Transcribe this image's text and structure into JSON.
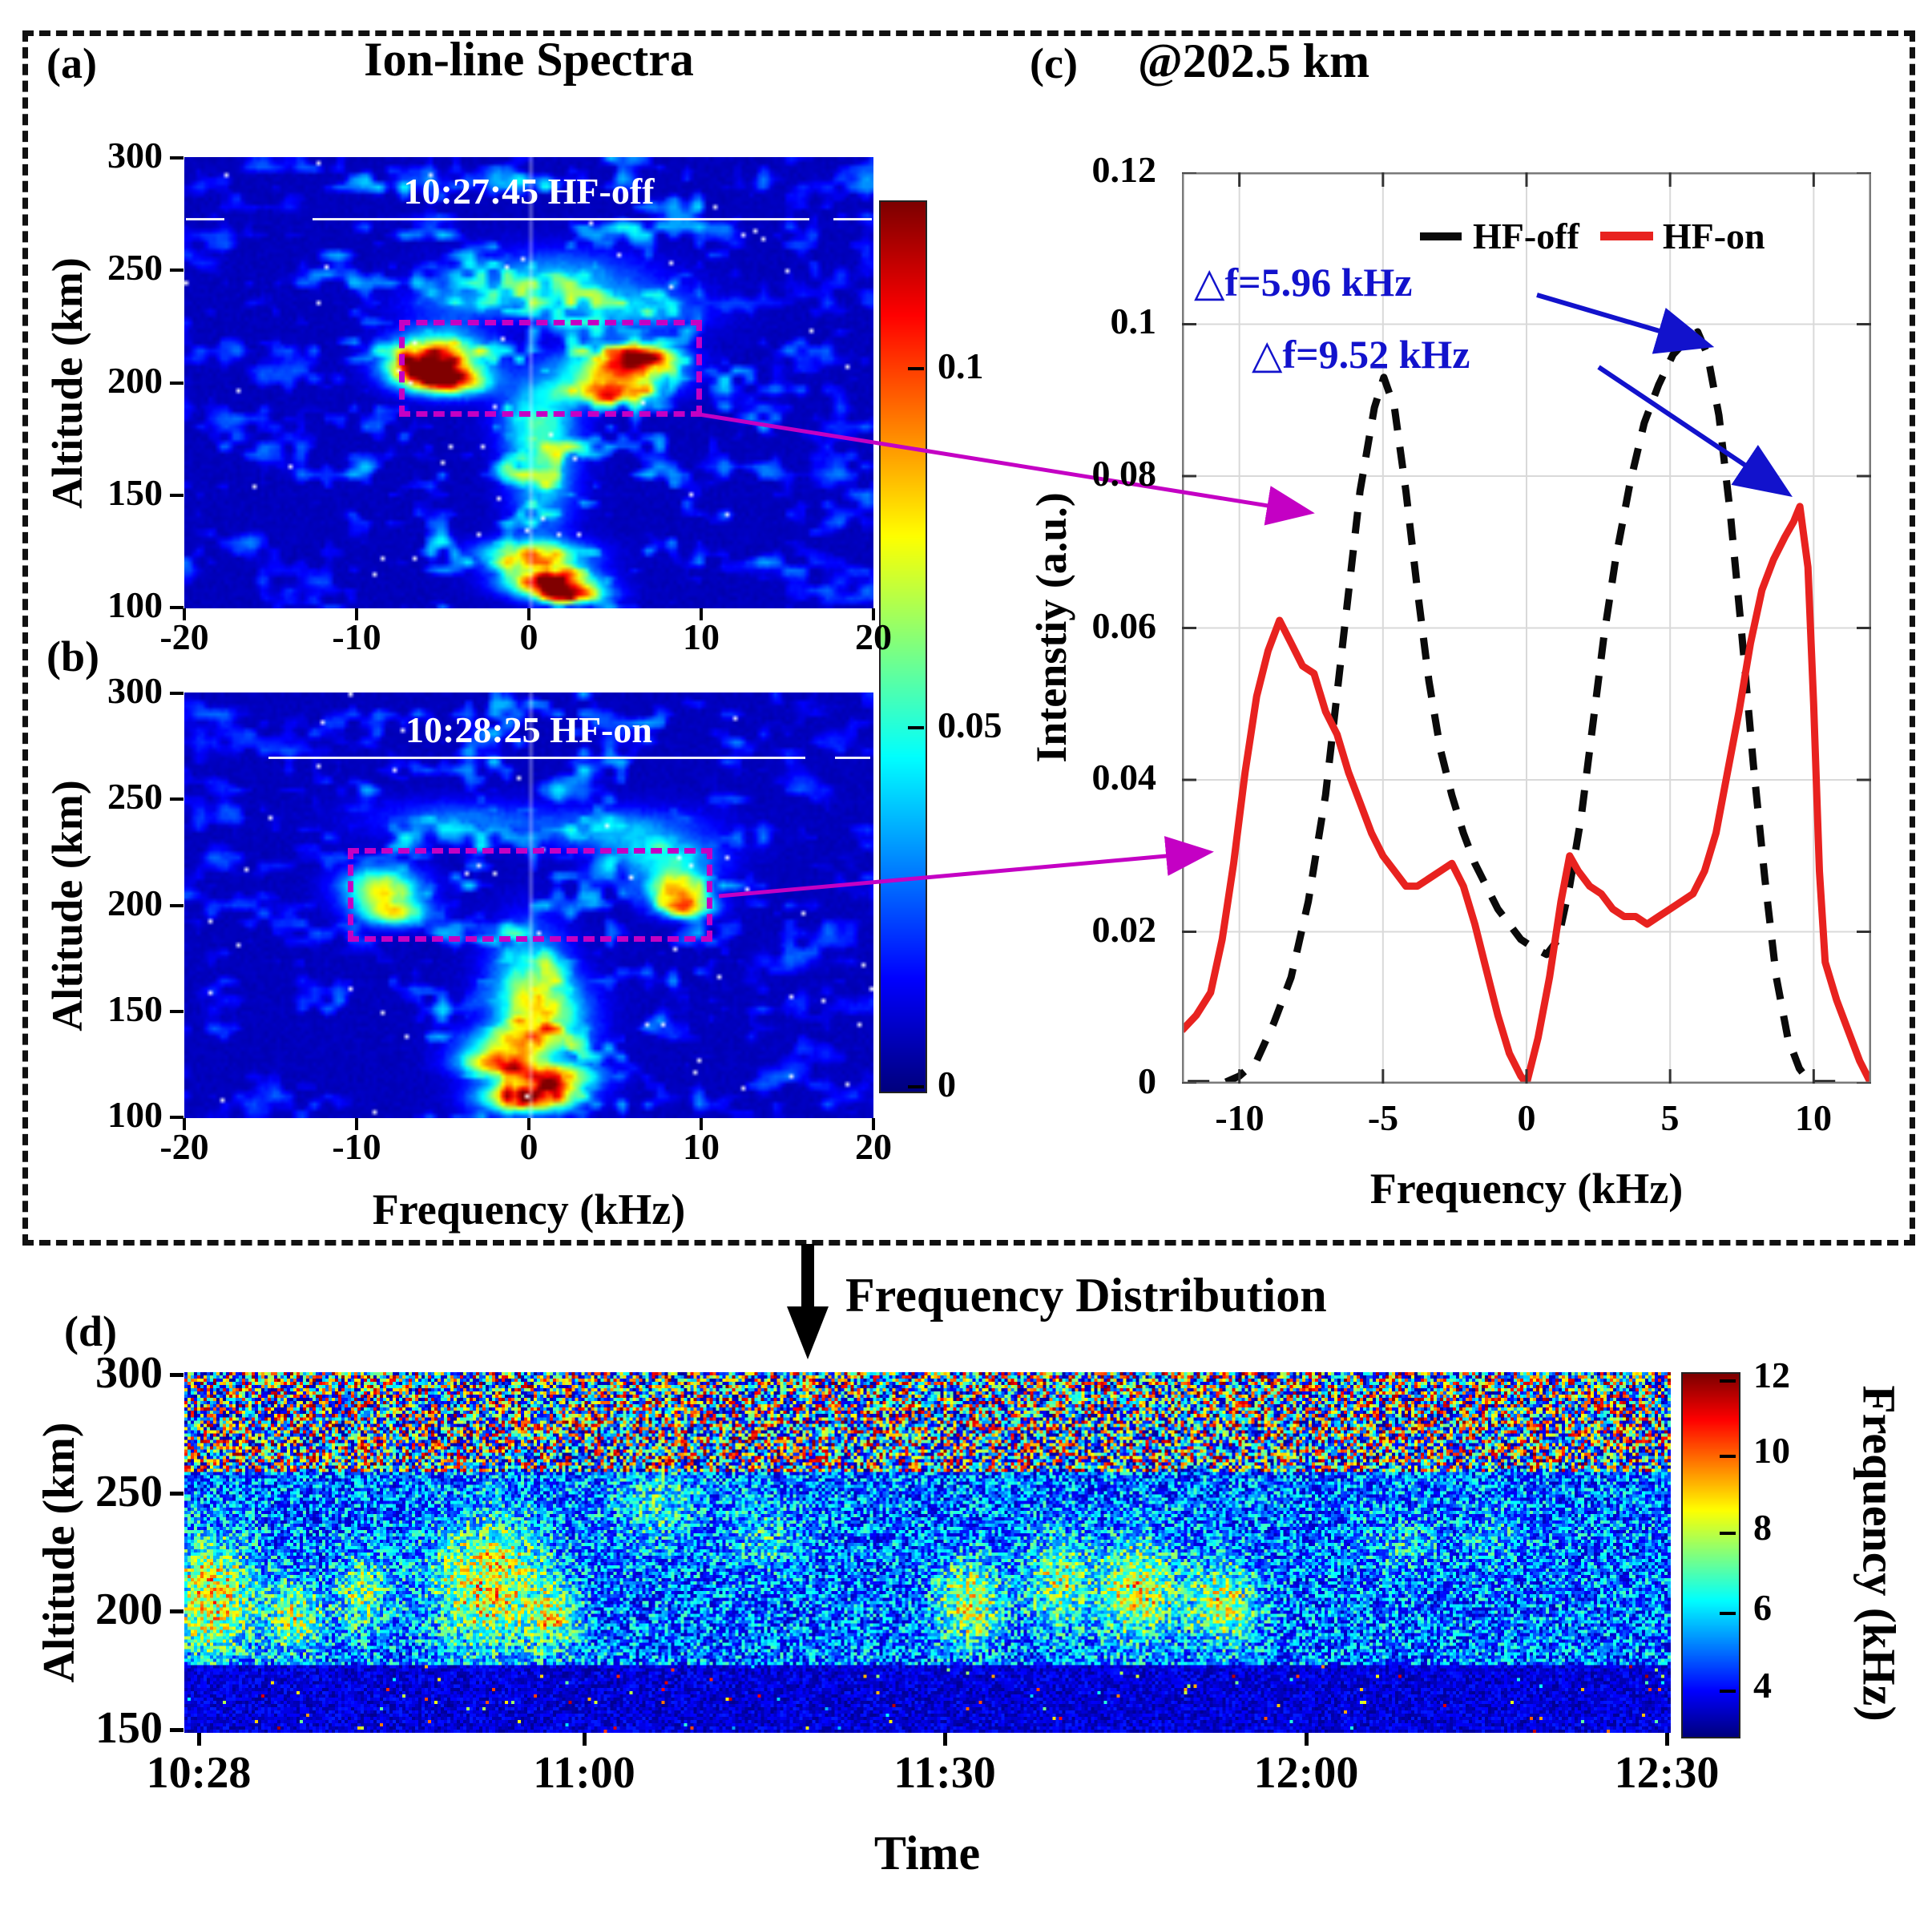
{
  "figure": {
    "panel_a": {
      "label": "(a)",
      "title": "Ion-line Spectra",
      "annotation": "10:27:45 HF-off",
      "ylabel": "Altitude (km)",
      "yticks": [
        "300",
        "250",
        "200",
        "150",
        "100"
      ],
      "xticks": [
        "-20",
        "-10",
        "0",
        "10",
        "20"
      ]
    },
    "panel_b": {
      "label": "(b)",
      "annotation": "10:28:25 HF-on",
      "ylabel": "Altitude (km)",
      "xlabel": "Frequency (kHz)",
      "yticks": [
        "300",
        "250",
        "200",
        "150",
        "100"
      ],
      "xticks": [
        "-20",
        "-10",
        "0",
        "10",
        "20"
      ]
    },
    "colorbar_ab": {
      "ticks": [
        "0.1",
        "0.05",
        "0"
      ]
    },
    "panel_c": {
      "label": "(c)",
      "title": "@202.5 km",
      "ylabel": "Intenstiy (a.u.)",
      "xlabel": "Frequency (kHz)",
      "yticks": [
        "0.12",
        "0.1",
        "0.08",
        "0.06",
        "0.04",
        "0.02",
        "0"
      ],
      "xticks": [
        "-10",
        "-5",
        "0",
        "5",
        "10"
      ],
      "legend": [
        {
          "label": "HF-off",
          "color": "#0a0a0a",
          "style": "dashed"
        },
        {
          "label": "HF-on",
          "color": "#e8221f",
          "style": "solid"
        }
      ],
      "annotations": [
        {
          "text": "△f=5.96 kHz"
        },
        {
          "text": "△f=9.52 kHz"
        }
      ]
    },
    "panel_d": {
      "label": "(d)",
      "title": "Frequency Distribution",
      "ylabel": "Altitude (km)",
      "xlabel": "Time",
      "yticks": [
        "300",
        "250",
        "200",
        "150"
      ],
      "xticks": [
        "10:28",
        "11:00",
        "11:30",
        "12:00",
        "12:30"
      ],
      "colorbar": {
        "ticks": [
          "12",
          "10",
          "8",
          "6",
          "4"
        ],
        "label": "Frequency (kHz)"
      }
    },
    "colors": {
      "highlight_magenta": "#c400c4",
      "annotation_blue": "#1212cc",
      "hf_on_red": "#e8221f",
      "hf_off_black": "#0a0a0a"
    }
  },
  "chart_data": [
    {
      "id": "panel_a",
      "type": "heatmap",
      "title": "Ion-line Spectra",
      "in_plot_label": "10:27:45 HF-off",
      "ylabel": "Altitude (km)",
      "xlim_kHz": [
        -20,
        20
      ],
      "ylim_km": [
        100,
        300
      ],
      "x_ticks": [
        -20,
        -10,
        0,
        10,
        20
      ],
      "y_ticks": [
        300,
        250,
        200,
        150,
        100
      ],
      "colormap": "jet",
      "color_range": [
        0,
        0.124
      ],
      "colorbar_ticks": [
        0.1,
        0.05,
        0
      ],
      "highlight_box": {
        "f_kHz": [
          -7.5,
          9.4
        ],
        "alt_km": [
          190,
          228
        ]
      },
      "noise_seed": 7,
      "features": [
        {
          "f": -5.2,
          "alt": 212,
          "sf": 2.6,
          "sa": 11,
          "amp": 0.7
        },
        {
          "f": -4.8,
          "alt": 201,
          "sf": 2.2,
          "sa": 6,
          "amp": 0.85
        },
        {
          "f": -6.5,
          "alt": 207,
          "sf": 1.8,
          "sa": 7,
          "amp": 0.6
        },
        {
          "f": 5.3,
          "alt": 206,
          "sf": 3.0,
          "sa": 9,
          "amp": 0.78
        },
        {
          "f": 6.8,
          "alt": 212,
          "sf": 1.8,
          "sa": 5,
          "amp": 0.7
        },
        {
          "f": 4.5,
          "alt": 196,
          "sf": 2.5,
          "sa": 5,
          "amp": 0.6
        },
        {
          "f": 1.2,
          "alt": 112,
          "sf": 2.4,
          "sa": 6,
          "amp": 1.0
        },
        {
          "f": 0.2,
          "alt": 124,
          "sf": 3.0,
          "sa": 6,
          "amp": 0.62
        },
        {
          "f": 2.5,
          "alt": 106,
          "sf": 2.0,
          "sa": 4,
          "amp": 0.7
        },
        {
          "f": 0.8,
          "alt": 160,
          "sf": 1.8,
          "sa": 28,
          "amp": 0.32
        },
        {
          "f": 0.5,
          "alt": 185,
          "sf": 2.2,
          "sa": 18,
          "amp": 0.28
        },
        {
          "f": 1.5,
          "alt": 247,
          "sf": 5.0,
          "sa": 12,
          "amp": 0.26
        },
        {
          "f": 6.0,
          "alt": 232,
          "sf": 4.0,
          "sa": 10,
          "amp": 0.28
        },
        {
          "f": -3.0,
          "alt": 236,
          "sf": 4.0,
          "sa": 8,
          "amp": 0.2
        }
      ]
    },
    {
      "id": "panel_b",
      "type": "heatmap",
      "in_plot_label": "10:28:25 HF-on",
      "ylabel": "Altitude (km)",
      "xlabel": "Frequency (kHz)",
      "xlim_kHz": [
        -20,
        20
      ],
      "ylim_km": [
        100,
        300
      ],
      "x_ticks": [
        -20,
        -10,
        0,
        10,
        20
      ],
      "y_ticks": [
        300,
        250,
        200,
        150,
        100
      ],
      "colormap": "jet",
      "color_range": [
        0,
        0.124
      ],
      "colorbar_ticks": [
        0.1,
        0.05,
        0
      ],
      "highlight_box": {
        "f_kHz": [
          -10.5,
          10
        ],
        "alt_km": [
          188,
          227
        ]
      },
      "noise_seed": 13,
      "features": [
        {
          "f": -8.6,
          "alt": 208,
          "sf": 2.2,
          "sa": 10,
          "amp": 0.6
        },
        {
          "f": -7.8,
          "alt": 196,
          "sf": 2.0,
          "sa": 6,
          "amp": 0.5
        },
        {
          "f": 8.6,
          "alt": 208,
          "sf": 1.8,
          "sa": 8,
          "amp": 0.72
        },
        {
          "f": 9.2,
          "alt": 199,
          "sf": 1.5,
          "sa": 5,
          "amp": 0.6
        },
        {
          "f": 0.0,
          "alt": 110,
          "sf": 2.6,
          "sa": 7,
          "amp": 1.0
        },
        {
          "f": -1.8,
          "alt": 126,
          "sf": 2.2,
          "sa": 6,
          "amp": 0.75
        },
        {
          "f": 1.5,
          "alt": 120,
          "sf": 2.5,
          "sa": 6,
          "amp": 0.68
        },
        {
          "f": -0.5,
          "alt": 136,
          "sf": 3.0,
          "sa": 7,
          "amp": 0.5
        },
        {
          "f": 0.0,
          "alt": 165,
          "sf": 2.2,
          "sa": 25,
          "amp": 0.38
        },
        {
          "f": 1.0,
          "alt": 150,
          "sf": 2.5,
          "sa": 15,
          "amp": 0.42
        },
        {
          "f": 5.5,
          "alt": 235,
          "sf": 4.5,
          "sa": 10,
          "amp": 0.26
        },
        {
          "f": -4.0,
          "alt": 240,
          "sf": 5.0,
          "sa": 9,
          "amp": 0.2
        },
        {
          "f": 8.0,
          "alt": 222,
          "sf": 3.0,
          "sa": 8,
          "amp": 0.32
        }
      ]
    },
    {
      "id": "panel_c",
      "type": "line",
      "title": "@202.5 km",
      "xlabel": "Frequency (kHz)",
      "ylabel": "Intenstiy (a.u.)",
      "xlim": [
        -12,
        12
      ],
      "ylim": [
        0,
        0.12
      ],
      "x_ticks": [
        -10,
        -5,
        0,
        5,
        10
      ],
      "y_ticks": [
        0.12,
        0.1,
        0.08,
        0.06,
        0.04,
        0.02,
        0
      ],
      "grid": true,
      "legend_position": "top-right",
      "annotations": [
        {
          "text": "△f=5.96 kHz",
          "series": "HF-off",
          "peak_f_kHz": 5.96,
          "peak_intensity": 0.099
        },
        {
          "text": "△f=9.52 kHz",
          "series": "HF-on",
          "peak_f_kHz": 9.52,
          "peak_intensity": 0.076
        }
      ],
      "series": [
        {
          "name": "HF-off",
          "color": "#0a0a0a",
          "style": "dashed",
          "points": [
            [
              -11.8,
              0
            ],
            [
              -10.6,
              0
            ],
            [
              -10,
              0.001
            ],
            [
              -9.4,
              0.003
            ],
            [
              -8.8,
              0.008
            ],
            [
              -8.2,
              0.014
            ],
            [
              -7.6,
              0.024
            ],
            [
              -7,
              0.038
            ],
            [
              -6.4,
              0.058
            ],
            [
              -5.8,
              0.078
            ],
            [
              -5.3,
              0.089
            ],
            [
              -4.97,
              0.093
            ],
            [
              -4.6,
              0.089
            ],
            [
              -4.2,
              0.078
            ],
            [
              -3.8,
              0.065
            ],
            [
              -3.4,
              0.053
            ],
            [
              -3,
              0.044
            ],
            [
              -2.6,
              0.038
            ],
            [
              -2.2,
              0.033
            ],
            [
              -1.8,
              0.029
            ],
            [
              -1.4,
              0.026
            ],
            [
              -1,
              0.023
            ],
            [
              -0.6,
              0.021
            ],
            [
              -0.2,
              0.019
            ],
            [
              0.2,
              0.018
            ],
            [
              0.7,
              0.017
            ],
            [
              1.1,
              0.019
            ],
            [
              1.5,
              0.026
            ],
            [
              1.9,
              0.035
            ],
            [
              2.3,
              0.047
            ],
            [
              2.7,
              0.059
            ],
            [
              3.1,
              0.069
            ],
            [
              3.6,
              0.079
            ],
            [
              4.1,
              0.087
            ],
            [
              4.6,
              0.092
            ],
            [
              5.1,
              0.096
            ],
            [
              5.6,
              0.098
            ],
            [
              5.96,
              0.099
            ],
            [
              6.3,
              0.096
            ],
            [
              6.7,
              0.088
            ],
            [
              7.1,
              0.075
            ],
            [
              7.5,
              0.059
            ],
            [
              7.9,
              0.042
            ],
            [
              8.3,
              0.027
            ],
            [
              8.7,
              0.014
            ],
            [
              9.1,
              0.006
            ],
            [
              9.5,
              0.002
            ],
            [
              9.9,
              0
            ],
            [
              10.6,
              0
            ],
            [
              11.3,
              0
            ]
          ]
        },
        {
          "name": "HF-on",
          "color": "#e8221f",
          "style": "solid",
          "points": [
            [
              -12,
              0.007
            ],
            [
              -11.5,
              0.009
            ],
            [
              -11,
              0.012
            ],
            [
              -10.6,
              0.019
            ],
            [
              -10.2,
              0.029
            ],
            [
              -9.8,
              0.041
            ],
            [
              -9.4,
              0.051
            ],
            [
              -9,
              0.057
            ],
            [
              -8.6,
              0.061
            ],
            [
              -8.2,
              0.058
            ],
            [
              -7.8,
              0.055
            ],
            [
              -7.4,
              0.054
            ],
            [
              -7,
              0.049
            ],
            [
              -6.6,
              0.046
            ],
            [
              -6.2,
              0.041
            ],
            [
              -5.8,
              0.037
            ],
            [
              -5.4,
              0.033
            ],
            [
              -5,
              0.03
            ],
            [
              -4.6,
              0.028
            ],
            [
              -4.2,
              0.026
            ],
            [
              -3.8,
              0.026
            ],
            [
              -3.4,
              0.027
            ],
            [
              -3,
              0.028
            ],
            [
              -2.6,
              0.029
            ],
            [
              -2.2,
              0.026
            ],
            [
              -1.8,
              0.021
            ],
            [
              -1.4,
              0.015
            ],
            [
              -1,
              0.009
            ],
            [
              -0.6,
              0.004
            ],
            [
              -0.2,
              0.001
            ],
            [
              0,
              0
            ],
            [
              0.4,
              0.006
            ],
            [
              0.8,
              0.014
            ],
            [
              1.2,
              0.024
            ],
            [
              1.5,
              0.03
            ],
            [
              1.8,
              0.028
            ],
            [
              2.2,
              0.026
            ],
            [
              2.6,
              0.025
            ],
            [
              3,
              0.023
            ],
            [
              3.4,
              0.022
            ],
            [
              3.8,
              0.022
            ],
            [
              4.2,
              0.021
            ],
            [
              4.6,
              0.022
            ],
            [
              5,
              0.023
            ],
            [
              5.4,
              0.024
            ],
            [
              5.8,
              0.025
            ],
            [
              6.2,
              0.028
            ],
            [
              6.6,
              0.033
            ],
            [
              7,
              0.041
            ],
            [
              7.4,
              0.049
            ],
            [
              7.8,
              0.058
            ],
            [
              8.2,
              0.065
            ],
            [
              8.6,
              0.069
            ],
            [
              9,
              0.072
            ],
            [
              9.3,
              0.074
            ],
            [
              9.52,
              0.076
            ],
            [
              9.8,
              0.068
            ],
            [
              10,
              0.05
            ],
            [
              10.2,
              0.028
            ],
            [
              10.4,
              0.016
            ],
            [
              10.8,
              0.011
            ],
            [
              11.2,
              0.007
            ],
            [
              11.6,
              0.003
            ],
            [
              12,
              0
            ]
          ]
        }
      ]
    },
    {
      "id": "panel_d",
      "type": "heatmap",
      "title": "Frequency Distribution",
      "xlabel": "Time",
      "ylabel": "Altitude (km)",
      "xlim_time": [
        "10:28",
        "12:30"
      ],
      "ylim_km": [
        150,
        300
      ],
      "x_ticks": [
        "10:28",
        "11:00",
        "11:30",
        "12:00",
        "12:30"
      ],
      "y_ticks": [
        300,
        250,
        200,
        150
      ],
      "colormap": "jet",
      "color_range_kHz": [
        3,
        12.2
      ],
      "colorbar_ticks": [
        12,
        10,
        8,
        6,
        4
      ],
      "colorbar_label": "Frequency (kHz)",
      "noise_seed": 101,
      "enhancement_events": [
        {
          "t_min": 1,
          "alt": 205,
          "st": 3.5,
          "sa": 24,
          "amp": 4.8
        },
        {
          "t_min": 8,
          "alt": 198,
          "st": 2.2,
          "sa": 14,
          "amp": 3.6
        },
        {
          "t_min": 13.5,
          "alt": 207,
          "st": 2.0,
          "sa": 16,
          "amp": 3.0
        },
        {
          "t_min": 24,
          "alt": 212,
          "st": 4.5,
          "sa": 26,
          "amp": 4.8
        },
        {
          "t_min": 29.5,
          "alt": 198,
          "st": 2.0,
          "sa": 14,
          "amp": 3.2
        },
        {
          "t_min": 38,
          "alt": 245,
          "st": 3.5,
          "sa": 16,
          "amp": 2.0
        },
        {
          "t_min": 47,
          "alt": 232,
          "st": 3.0,
          "sa": 14,
          "amp": 1.5
        },
        {
          "t_min": 64,
          "alt": 204,
          "st": 2.6,
          "sa": 17,
          "amp": 4.2
        },
        {
          "t_min": 71.5,
          "alt": 213,
          "st": 2.6,
          "sa": 18,
          "amp": 3.4
        },
        {
          "t_min": 78,
          "alt": 209,
          "st": 3.0,
          "sa": 20,
          "amp": 4.4
        },
        {
          "t_min": 85,
          "alt": 204,
          "st": 2.8,
          "sa": 16,
          "amp": 4.0
        },
        {
          "t_min": 100,
          "alt": 228,
          "st": 3.0,
          "sa": 12,
          "amp": 1.3
        },
        {
          "t_min": 108,
          "alt": 232,
          "st": 2.5,
          "sa": 10,
          "amp": 1.1
        }
      ]
    }
  ]
}
